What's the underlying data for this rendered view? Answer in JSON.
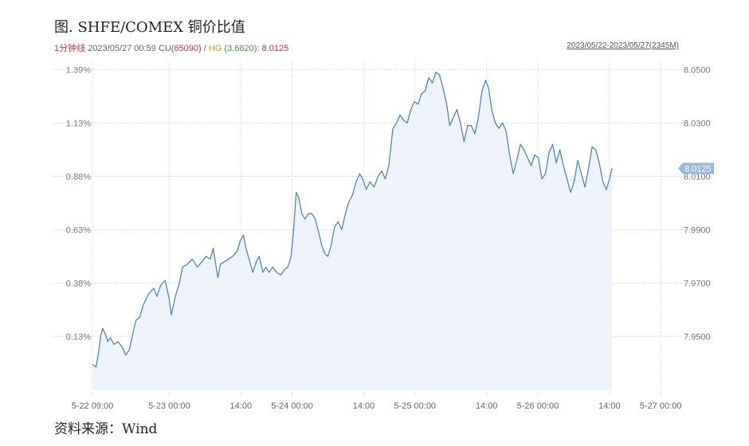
{
  "header": {
    "title": "图. SHFE/COMEX 铜价比值",
    "interval": "1分钟线",
    "datetime": "2023/05/27 00:59",
    "cu_label": "CU",
    "cu_value": "(65090)",
    "separator": "/",
    "hg_label": "HG",
    "hg_value": "(3.6820)",
    "ratio_text": ": 8.0125",
    "range_text": "2023/05/22-2023/05/27(2345M)"
  },
  "footer": {
    "source": "资料来源：Wind"
  },
  "colors": {
    "line": "#4f86bf",
    "area": "#eef3fa",
    "grid": "#d9d9d9",
    "label_bg": "#9ab8db"
  },
  "chart_data": {
    "type": "area",
    "left_ticks": [
      "1.39%",
      "1.13%",
      "0.88%",
      "0.63%",
      "0.38%",
      "0.13%"
    ],
    "right_ticks": [
      "8.0500",
      "8.0300",
      "8.0100",
      "7.9900",
      "7.9700",
      "7.9500"
    ],
    "right_tick_values": [
      8.05,
      8.03,
      8.01,
      7.99,
      7.97,
      7.95
    ],
    "ylim": [
      7.9298,
      8.0534
    ],
    "x_labels": [
      {
        "t": 0,
        "label": "5-22 09:00"
      },
      {
        "t": 15,
        "label": "5-23 00:00"
      },
      {
        "t": 29,
        "label": "14:00"
      },
      {
        "t": 39,
        "label": "5-24 00:00"
      },
      {
        "t": 53,
        "label": "14:00"
      },
      {
        "t": 63,
        "label": "5-25 00:00"
      },
      {
        "t": 77,
        "label": "14:00"
      },
      {
        "t": 87,
        "label": "5-26 00:00"
      },
      {
        "t": 101,
        "label": "14:00"
      },
      {
        "t": 111,
        "label": "5-27 00:00"
      }
    ],
    "x_unit": "hours since 5-22 09:00",
    "last_value_label": "8.0125",
    "series": [
      {
        "name": "SHFE/COMEX",
        "points": [
          [
            0,
            7.9395
          ],
          [
            0.7,
            7.9385
          ],
          [
            1.2,
            7.944
          ],
          [
            1.6,
            7.95
          ],
          [
            2.0,
            7.953
          ],
          [
            2.5,
            7.951
          ],
          [
            3.0,
            7.948
          ],
          [
            3.5,
            7.9495
          ],
          [
            4.2,
            7.947
          ],
          [
            5.0,
            7.948
          ],
          [
            5.8,
            7.946
          ],
          [
            6.5,
            7.943
          ],
          [
            7.2,
            7.945
          ],
          [
            8.0,
            7.952
          ],
          [
            8.5,
            7.956
          ],
          [
            9.2,
            7.957
          ],
          [
            10.0,
            7.962
          ],
          [
            11.0,
            7.966
          ],
          [
            12.0,
            7.968
          ],
          [
            12.6,
            7.965
          ],
          [
            13.3,
            7.969
          ],
          [
            14.2,
            7.971
          ],
          [
            15.0,
            7.964
          ],
          [
            15.4,
            7.958
          ],
          [
            16.2,
            7.965
          ],
          [
            17.0,
            7.97
          ],
          [
            17.6,
            7.976
          ],
          [
            18.5,
            7.977
          ],
          [
            19.5,
            7.979
          ],
          [
            20.5,
            7.976
          ],
          [
            21.4,
            7.978
          ],
          [
            22.2,
            7.98
          ],
          [
            23.0,
            7.979
          ],
          [
            23.6,
            7.983
          ],
          [
            24.0,
            7.978
          ],
          [
            24.5,
            7.972
          ],
          [
            25.0,
            7.977
          ],
          [
            25.8,
            7.978
          ],
          [
            26.6,
            7.979
          ],
          [
            27.4,
            7.98
          ],
          [
            28.3,
            7.982
          ],
          [
            28.9,
            7.986
          ],
          [
            29.5,
            7.988
          ],
          [
            30.0,
            7.983
          ],
          [
            30.6,
            7.979
          ],
          [
            31.3,
            7.974
          ],
          [
            32.0,
            7.978
          ],
          [
            32.6,
            7.98
          ],
          [
            33.3,
            7.974
          ],
          [
            33.9,
            7.976
          ],
          [
            34.5,
            7.974
          ],
          [
            35.2,
            7.976
          ],
          [
            36.0,
            7.974
          ],
          [
            36.8,
            7.973
          ],
          [
            37.5,
            7.975
          ],
          [
            38.2,
            7.976
          ],
          [
            38.8,
            7.98
          ],
          [
            39.3,
            7.99
          ],
          [
            39.8,
            8.004
          ],
          [
            40.3,
            8.002
          ],
          [
            40.9,
            7.996
          ],
          [
            41.5,
            7.994
          ],
          [
            42.2,
            7.996
          ],
          [
            42.9,
            7.996
          ],
          [
            43.5,
            7.994
          ],
          [
            44.2,
            7.989
          ],
          [
            44.8,
            7.984
          ],
          [
            45.4,
            7.981
          ],
          [
            46.0,
            7.98
          ],
          [
            46.6,
            7.984
          ],
          [
            47.3,
            7.991
          ],
          [
            48.0,
            7.993
          ],
          [
            48.7,
            7.99
          ],
          [
            49.3,
            7.995
          ],
          [
            50.0,
            8.0
          ],
          [
            50.8,
            8.003
          ],
          [
            51.5,
            8.008
          ],
          [
            52.2,
            8.011
          ],
          [
            52.8,
            8.009
          ],
          [
            53.5,
            8.005
          ],
          [
            54.2,
            8.008
          ],
          [
            55.0,
            8.006
          ],
          [
            55.8,
            8.01
          ],
          [
            56.5,
            8.012
          ],
          [
            57.2,
            8.009
          ],
          [
            57.9,
            8.014
          ],
          [
            58.7,
            8.028
          ],
          [
            59.4,
            8.03
          ],
          [
            60.1,
            8.033
          ],
          [
            60.8,
            8.031
          ],
          [
            61.5,
            8.03
          ],
          [
            62.2,
            8.035
          ],
          [
            62.9,
            8.038
          ],
          [
            63.6,
            8.037
          ],
          [
            64.3,
            8.041
          ],
          [
            65.0,
            8.042
          ],
          [
            65.7,
            8.047
          ],
          [
            66.4,
            8.045
          ],
          [
            67.1,
            8.049
          ],
          [
            67.8,
            8.048
          ],
          [
            68.5,
            8.043
          ],
          [
            69.2,
            8.037
          ],
          [
            69.8,
            8.029
          ],
          [
            70.5,
            8.032
          ],
          [
            71.2,
            8.035
          ],
          [
            71.9,
            8.03
          ],
          [
            72.6,
            8.023
          ],
          [
            73.3,
            8.029
          ],
          [
            74.0,
            8.029
          ],
          [
            74.7,
            8.026
          ],
          [
            75.4,
            8.032
          ],
          [
            76.1,
            8.042
          ],
          [
            76.8,
            8.046
          ],
          [
            77.4,
            8.043
          ],
          [
            78.0,
            8.035
          ],
          [
            78.7,
            8.03
          ],
          [
            79.4,
            8.028
          ],
          [
            80.1,
            8.03
          ],
          [
            80.8,
            8.027
          ],
          [
            81.5,
            8.018
          ],
          [
            82.2,
            8.011
          ],
          [
            82.9,
            8.016
          ],
          [
            83.6,
            8.022
          ],
          [
            84.3,
            8.02
          ],
          [
            85.0,
            8.017
          ],
          [
            85.7,
            8.014
          ],
          [
            86.4,
            8.018
          ],
          [
            87.1,
            8.017
          ],
          [
            87.8,
            8.009
          ],
          [
            88.5,
            8.011
          ],
          [
            89.2,
            8.019
          ],
          [
            89.9,
            8.022
          ],
          [
            90.6,
            8.015
          ],
          [
            91.3,
            8.02
          ],
          [
            92.0,
            8.014
          ],
          [
            92.7,
            8.009
          ],
          [
            93.4,
            8.004
          ],
          [
            94.1,
            8.008
          ],
          [
            94.8,
            8.016
          ],
          [
            95.5,
            8.011
          ],
          [
            96.2,
            8.006
          ],
          [
            96.9,
            8.013
          ],
          [
            97.6,
            8.021
          ],
          [
            98.3,
            8.02
          ],
          [
            99.0,
            8.015
          ],
          [
            99.7,
            8.008
          ],
          [
            100.4,
            8.005
          ],
          [
            101.0,
            8.009
          ],
          [
            101.5,
            8.013
          ]
        ]
      }
    ]
  }
}
